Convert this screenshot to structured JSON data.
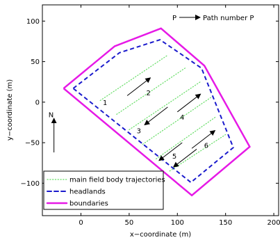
{
  "chart_data": {
    "type": "line",
    "xlabel": "x−coordinate (m)",
    "ylabel": "y−coordinate (m)",
    "xlim": [
      -40,
      205
    ],
    "ylim": [
      -140,
      120
    ],
    "xticks": [
      0,
      50,
      100,
      150,
      200
    ],
    "yticks": [
      -100,
      -50,
      0,
      50,
      100
    ],
    "xtick_labels": [
      "0",
      "50",
      "100",
      "150",
      "200"
    ],
    "ytick_labels": [
      "−100",
      "−50",
      "0",
      "50",
      "100"
    ],
    "grid": false,
    "legend_position": "bottom-left",
    "colors": {
      "trajectories": "#66dd66",
      "headlands": "#1a1acc",
      "boundaries": "#e619e6"
    },
    "series": [
      {
        "name": "main field body trajectories",
        "style": "dotted",
        "color": "#66dd66",
        "segments": [
          [
            [
              20,
              2
            ],
            [
              90,
              58
            ]
          ],
          [
            [
              37,
              -15
            ],
            [
              108,
              42
            ]
          ],
          [
            [
              50,
              -34
            ],
            [
              125,
              26
            ]
          ],
          [
            [
              64,
              -52
            ],
            [
              135,
              6
            ]
          ],
          [
            [
              78,
              -70
            ],
            [
              140,
              -18
            ]
          ],
          [
            [
              92,
              -85
            ],
            [
              150,
              -40
            ]
          ]
        ]
      },
      {
        "name": "headlands",
        "style": "dashed",
        "color": "#1a1acc",
        "points": [
          [
            -8,
            17
          ],
          [
            40,
            61
          ],
          [
            82,
            77
          ],
          [
            125,
            42
          ],
          [
            158,
            -56
          ],
          [
            114,
            -99
          ],
          [
            -8,
            17
          ]
        ]
      },
      {
        "name": "boundaries",
        "style": "solid",
        "color": "#e619e6",
        "points": [
          [
            -18,
            17
          ],
          [
            35,
            69
          ],
          [
            83,
            91
          ],
          [
            128,
            45
          ],
          [
            175,
            -55
          ],
          [
            115,
            -115
          ],
          [
            -18,
            17
          ]
        ]
      }
    ],
    "arrows": [
      {
        "from": [
          48,
          8
        ],
        "to": [
          72,
          30
        ]
      },
      {
        "from": [
          90,
          -6
        ],
        "to": [
          66,
          -28
        ]
      },
      {
        "from": [
          100,
          -12
        ],
        "to": [
          124,
          10
        ]
      },
      {
        "from": [
          105,
          -50
        ],
        "to": [
          81,
          -72
        ]
      },
      {
        "from": [
          115,
          -57
        ],
        "to": [
          139,
          -35
        ]
      },
      {
        "from": [
          120,
          -58
        ],
        "to": [
          96,
          -80
        ]
      },
      {
        "from": [
          -28,
          -62
        ],
        "to": [
          -28,
          -20
        ]
      }
    ],
    "path_labels": [
      {
        "text": "1",
        "x": 25,
        "y": 0
      },
      {
        "text": "2",
        "x": 70,
        "y": 12
      },
      {
        "text": "3",
        "x": 60,
        "y": -35
      },
      {
        "text": "4",
        "x": 105,
        "y": -18
      },
      {
        "text": "5",
        "x": 97,
        "y": -66
      },
      {
        "text": "6",
        "x": 130,
        "y": -53
      }
    ],
    "north_label": {
      "text": "N",
      "x": -31,
      "y": -15
    },
    "legend_note": {
      "symbol": "P",
      "text": "Path number P"
    },
    "legend": [
      {
        "label": "main field body trajectories",
        "style": "dotted",
        "color": "#66dd66"
      },
      {
        "label": "headlands",
        "style": "dashed",
        "color": "#1a1acc"
      },
      {
        "label": "boundaries",
        "style": "solid",
        "color": "#e619e6"
      }
    ]
  }
}
